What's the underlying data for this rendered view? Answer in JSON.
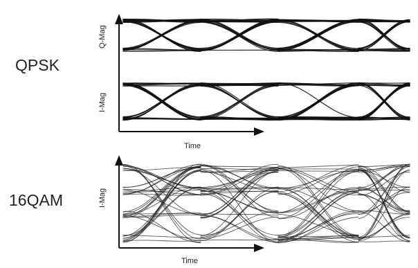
{
  "qpsk": {
    "label": "QPSK",
    "q_axis_label": "Q-Mag",
    "i_axis_label": "I-Mag",
    "time_label": "Time"
  },
  "qam16": {
    "label": "16QAM",
    "i_axis_label": "I-Mag",
    "time_label": "Time"
  }
}
